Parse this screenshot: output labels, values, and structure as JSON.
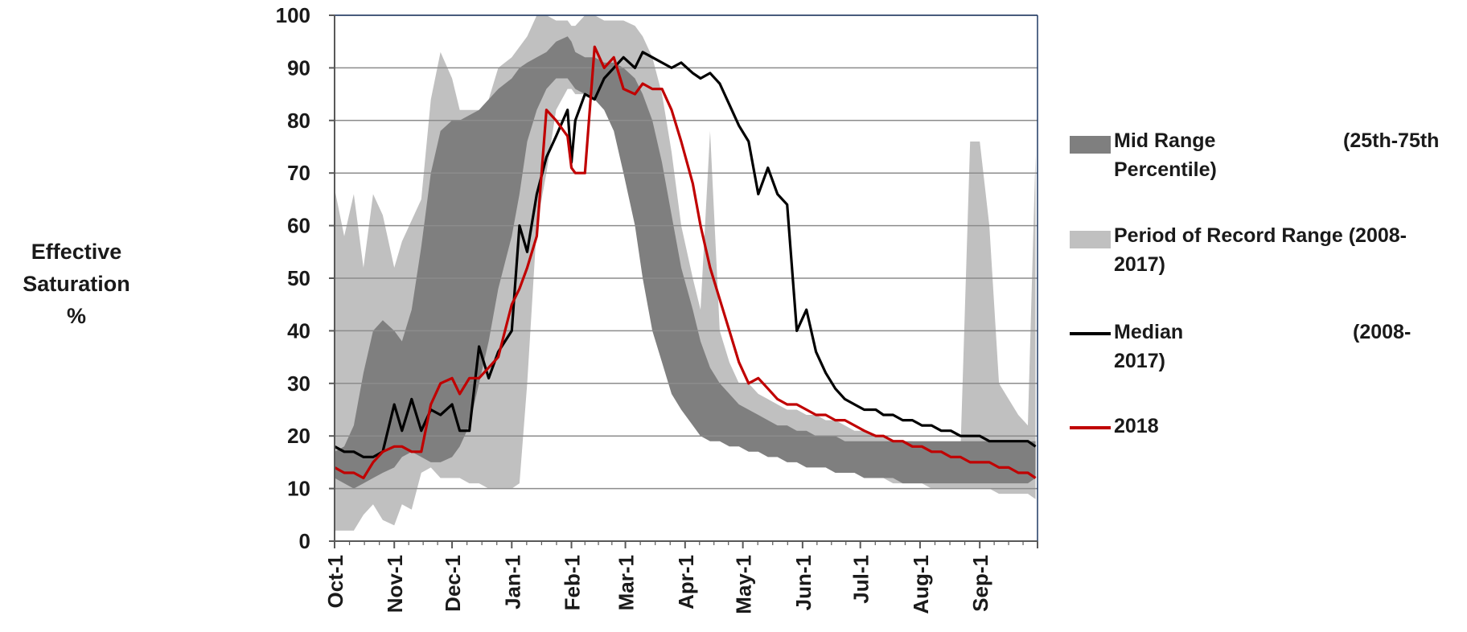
{
  "chart_data": {
    "type": "area",
    "ylabel_lines": [
      "Effective",
      "Saturation",
      "%"
    ],
    "ylim": [
      0,
      100
    ],
    "yticks": [
      0,
      10,
      20,
      30,
      40,
      50,
      60,
      70,
      80,
      90,
      100
    ],
    "xtick_labels": [
      "Oct-1",
      "Nov-1",
      "Dec-1",
      "Jan-1",
      "Feb-1",
      "Mar-1",
      "Apr-1",
      "May-1",
      "Jun-1",
      "Jul-1",
      "Aug-1",
      "Sep-1"
    ],
    "grid": "horizontal",
    "legend_position": "right",
    "x_unit": "day of water year (Oct-1 = 0)",
    "x": [
      0,
      5,
      10,
      15,
      20,
      25,
      31,
      35,
      40,
      45,
      50,
      55,
      61,
      65,
      70,
      75,
      80,
      85,
      92,
      96,
      100,
      105,
      110,
      115,
      121,
      123,
      125,
      130,
      135,
      140,
      145,
      150,
      156,
      160,
      165,
      170,
      175,
      180,
      186,
      190,
      195,
      200,
      205,
      210,
      215,
      220,
      225,
      230,
      235,
      240,
      245,
      250,
      255,
      260,
      265,
      270,
      275,
      281,
      285,
      290,
      295,
      300,
      305,
      310,
      315,
      320,
      325,
      330,
      335,
      340,
      345,
      350,
      355,
      360,
      364
    ],
    "series": [
      {
        "name": "Period of Record Range (2008-2017)",
        "color": "#c0c0c0",
        "kind": "band",
        "low": [
          2,
          2,
          2,
          5,
          7,
          4,
          3,
          7,
          6,
          13,
          14,
          12,
          12,
          12,
          11,
          11,
          10,
          10,
          10,
          11,
          30,
          60,
          70,
          82,
          86,
          86,
          85,
          85,
          86,
          85,
          82,
          78,
          72,
          62,
          54,
          46,
          40,
          32,
          26,
          23,
          23,
          22,
          21,
          20,
          20,
          19,
          19,
          18,
          18,
          17,
          16,
          15,
          15,
          14,
          13,
          13,
          12,
          12,
          12,
          11,
          11,
          11,
          11,
          10,
          10,
          10,
          10,
          10,
          10,
          10,
          9,
          9,
          9,
          9,
          8
        ],
        "high": [
          67,
          58,
          66,
          52,
          66,
          62,
          52,
          57,
          61,
          65,
          84,
          93,
          88,
          82,
          82,
          82,
          84,
          90,
          92,
          94,
          96,
          100,
          100,
          99,
          99,
          98,
          98,
          100,
          100,
          99,
          99,
          99,
          98,
          96,
          92,
          85,
          74,
          60,
          50,
          44,
          78,
          40,
          34,
          30,
          30,
          28,
          27,
          26,
          25,
          25,
          24,
          24,
          23,
          23,
          22,
          21,
          21,
          20,
          20,
          19,
          19,
          19,
          18,
          18,
          18,
          17,
          17,
          76,
          76,
          60,
          30,
          27,
          24,
          22,
          74
        ]
      },
      {
        "name": "Mid Range (25th-75th Percentile)",
        "color": "#7f7f7f",
        "kind": "band",
        "low": [
          12,
          11,
          10,
          11,
          12,
          13,
          14,
          16,
          17,
          16,
          15,
          15,
          16,
          18,
          22,
          30,
          38,
          48,
          58,
          66,
          76,
          82,
          86,
          88,
          88,
          87,
          86,
          85,
          84,
          82,
          78,
          70,
          60,
          50,
          40,
          34,
          28,
          25,
          22,
          20,
          19,
          19,
          18,
          18,
          17,
          17,
          16,
          16,
          15,
          15,
          14,
          14,
          14,
          13,
          13,
          13,
          12,
          12,
          12,
          12,
          11,
          11,
          11,
          11,
          11,
          11,
          11,
          11,
          11,
          11,
          11,
          11,
          11,
          11,
          12
        ],
        "high": [
          17,
          18,
          22,
          32,
          40,
          42,
          40,
          38,
          44,
          56,
          70,
          78,
          80,
          80,
          81,
          82,
          84,
          86,
          88,
          90,
          91,
          92,
          93,
          95,
          96,
          95,
          93,
          92,
          92,
          91,
          91,
          90,
          88,
          85,
          80,
          72,
          62,
          52,
          44,
          38,
          33,
          30,
          28,
          26,
          25,
          24,
          23,
          22,
          22,
          21,
          21,
          20,
          20,
          20,
          19,
          19,
          19,
          19,
          19,
          19,
          19,
          19,
          19,
          19,
          19,
          19,
          19,
          19,
          19,
          19,
          19,
          19,
          19,
          19,
          19
        ]
      },
      {
        "name": "Median (2008-2017)",
        "color": "#000000",
        "kind": "line",
        "values": [
          18,
          17,
          17,
          16,
          16,
          17,
          26,
          21,
          27,
          21,
          25,
          24,
          26,
          21,
          21,
          37,
          31,
          36,
          40,
          60,
          55,
          66,
          73,
          77,
          82,
          72,
          80,
          85,
          84,
          88,
          90,
          92,
          90,
          93,
          92,
          91,
          90,
          91,
          89,
          88,
          89,
          87,
          83,
          79,
          76,
          66,
          71,
          66,
          64,
          40,
          44,
          36,
          32,
          29,
          27,
          26,
          25,
          25,
          24,
          24,
          23,
          23,
          22,
          22,
          21,
          21,
          20,
          20,
          20,
          19,
          19,
          19,
          19,
          19,
          18
        ]
      },
      {
        "name": "2018",
        "color": "#c00000",
        "kind": "line",
        "values": [
          14,
          13,
          13,
          12,
          15,
          17,
          18,
          18,
          17,
          17,
          26,
          30,
          31,
          28,
          31,
          31,
          33,
          35,
          45,
          48,
          52,
          58,
          82,
          80,
          77,
          71,
          70,
          70,
          94,
          90,
          92,
          86,
          85,
          87,
          86,
          86,
          82,
          76,
          68,
          60,
          52,
          46,
          40,
          34,
          30,
          31,
          29,
          27,
          26,
          26,
          25,
          24,
          24,
          23,
          23,
          22,
          21,
          20,
          20,
          19,
          19,
          18,
          18,
          17,
          17,
          16,
          16,
          15,
          15,
          15,
          14,
          14,
          13,
          13,
          12
        ]
      }
    ]
  },
  "legend": {
    "items": [
      {
        "label": "Mid Range",
        "right": "(25th-75th",
        "second": "Percentile)",
        "color": "#7f7f7f",
        "kind": "box"
      },
      {
        "label": "Period of Record Range (2008-",
        "right": "",
        "second": "2017)",
        "color": "#c0c0c0",
        "kind": "box"
      },
      {
        "label": "Median",
        "right": "(2008-",
        "second": "2017)",
        "color": "#000000",
        "kind": "line"
      },
      {
        "label": "2018",
        "right": "",
        "second": "",
        "color": "#c00000",
        "kind": "line"
      }
    ]
  }
}
